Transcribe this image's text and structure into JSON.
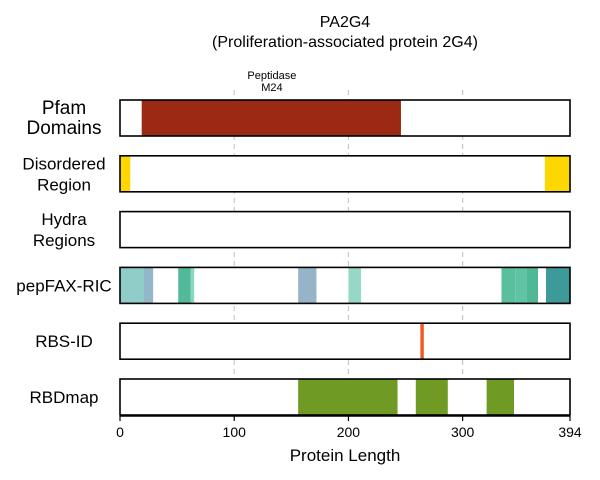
{
  "chart_data": {
    "type": "bar",
    "title": [
      "PA2G4",
      "(Proliferation-associated protein 2G4)"
    ],
    "xlabel": "Protein Length",
    "xlim": [
      0,
      394
    ],
    "xticks": [
      0,
      100,
      200,
      300,
      394
    ],
    "xtick_labels": [
      "0",
      "100",
      "200",
      "300",
      "394"
    ],
    "grid": "vertical dashed at 100, 200, 300",
    "tracks": [
      {
        "label": [
          "Pfam",
          "Domains"
        ],
        "segments": [
          {
            "start": 19,
            "end": 246,
            "color": "#9a2a14",
            "label": [
              "Peptidase",
              "M24"
            ]
          }
        ]
      },
      {
        "label": [
          "Disordered",
          "Region"
        ],
        "segments": [
          {
            "start": 0,
            "end": 9,
            "color": "#ffd700"
          },
          {
            "start": 372,
            "end": 394,
            "color": "#ffd700"
          }
        ]
      },
      {
        "label": [
          "Hydra",
          "Regions"
        ],
        "segments": []
      },
      {
        "label": [
          "pepFAX-RIC"
        ],
        "segments": [
          {
            "start": 0,
            "end": 21,
            "color": "#8ecdc8"
          },
          {
            "start": 21,
            "end": 29,
            "color": "#93b7c9"
          },
          {
            "start": 51,
            "end": 62,
            "color": "#52b99a"
          },
          {
            "start": 62,
            "end": 65,
            "color": "#8ad8c0"
          },
          {
            "start": 156,
            "end": 172,
            "color": "#96b4c8"
          },
          {
            "start": 200,
            "end": 211,
            "color": "#96d8c6"
          },
          {
            "start": 334,
            "end": 346,
            "color": "#5abf9c"
          },
          {
            "start": 346,
            "end": 356,
            "color": "#60c4a4"
          },
          {
            "start": 356,
            "end": 366,
            "color": "#4fb896"
          },
          {
            "start": 373,
            "end": 394,
            "color": "#3d9a98"
          }
        ]
      },
      {
        "label": [
          "RBS-ID"
        ],
        "segments": [
          {
            "start": 263,
            "end": 266,
            "color": "#f05a1e"
          }
        ]
      },
      {
        "label": [
          "RBDmap"
        ],
        "segments": [
          {
            "start": 156,
            "end": 243,
            "color": "#6f9a23"
          },
          {
            "start": 259,
            "end": 287,
            "color": "#6f9a23"
          },
          {
            "start": 321,
            "end": 345,
            "color": "#6f9a23"
          }
        ]
      }
    ]
  }
}
